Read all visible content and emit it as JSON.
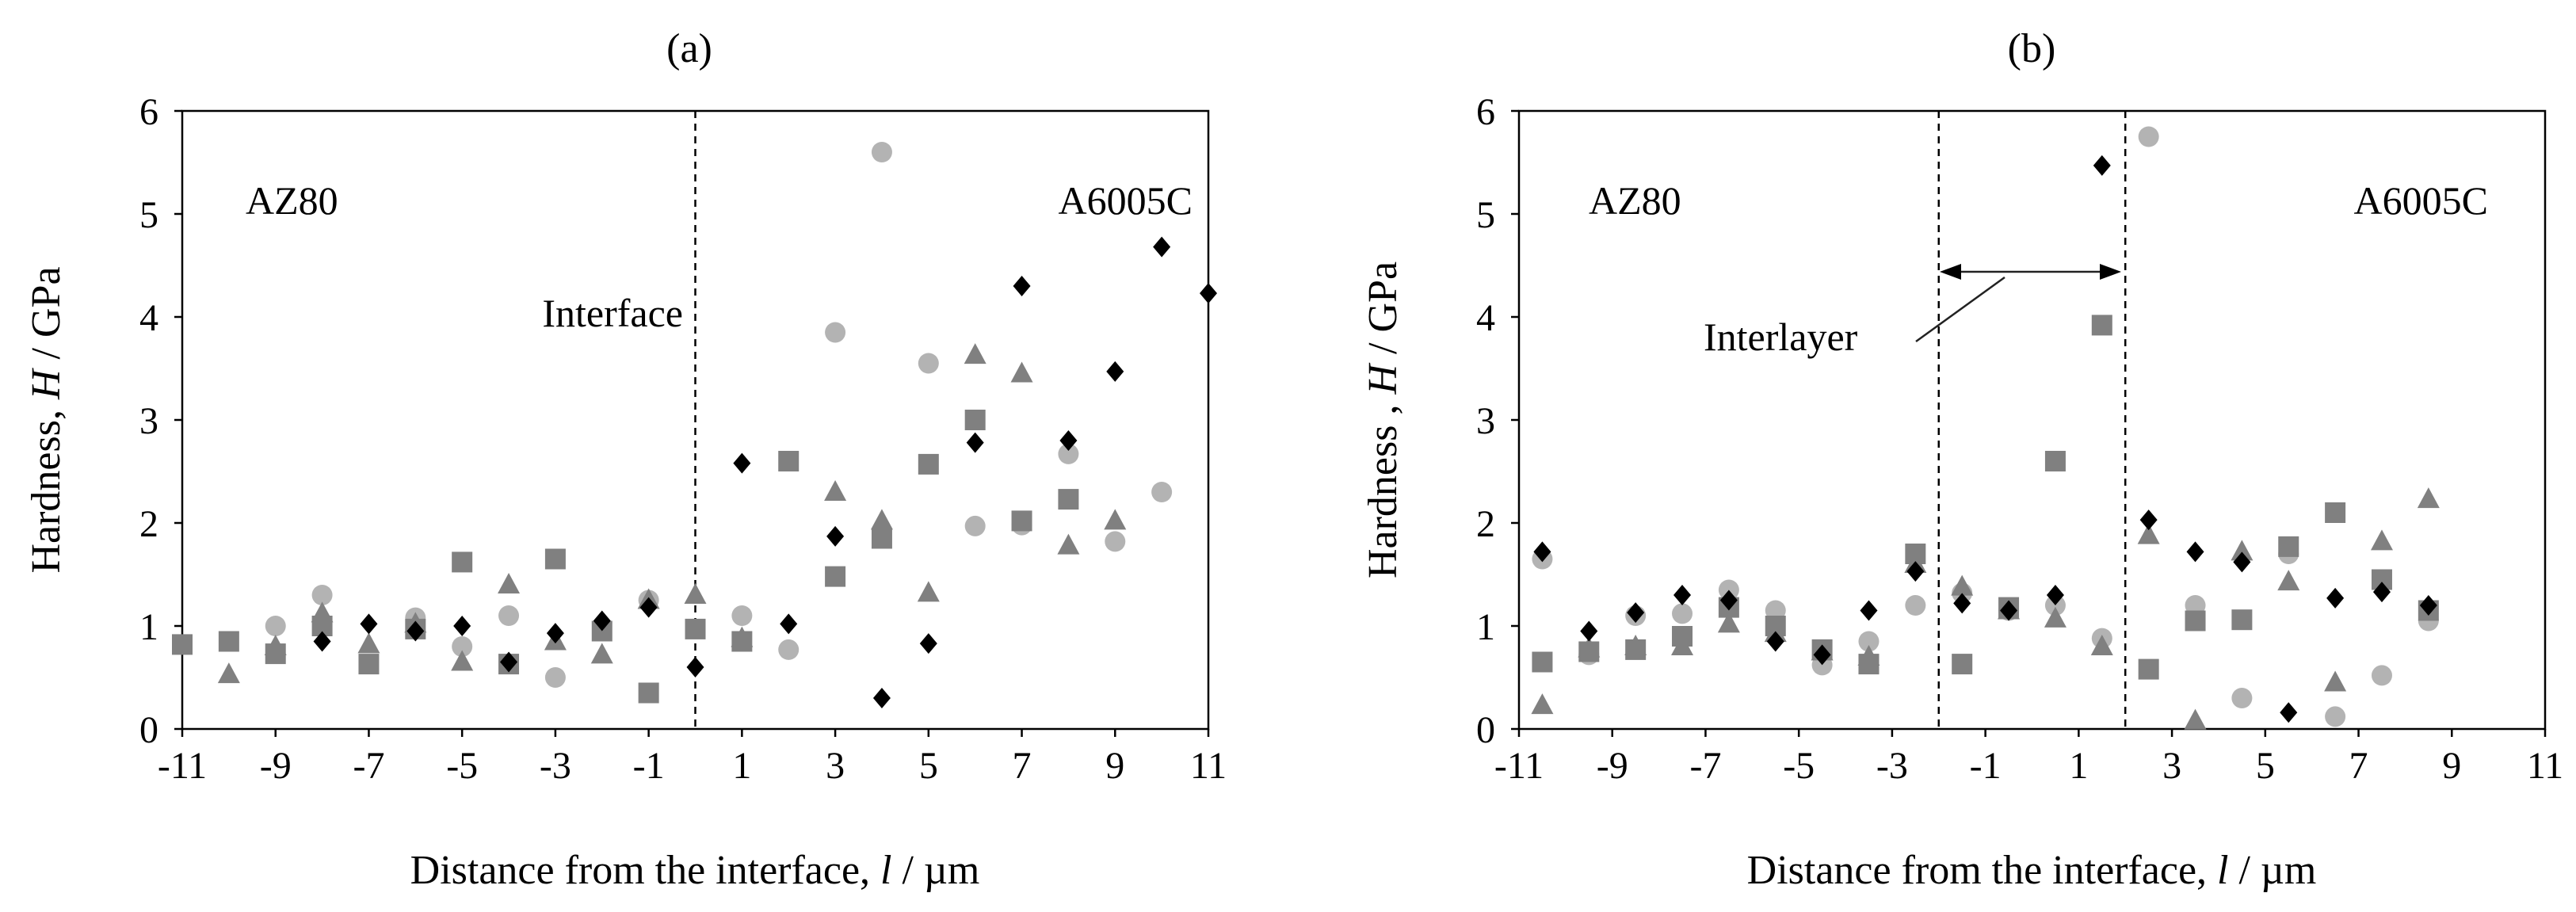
{
  "colors": {
    "diamond": "#000000",
    "square": "#808080",
    "triangle": "#808080",
    "circle": "#b3b3b3"
  },
  "chart_data": [
    {
      "type": "scatter",
      "title": "(a)",
      "xlabel": "Distance from the interface, ",
      "xlabel_var": "l",
      "xlabel_unit": " / µm",
      "ylabel": "Hardness, ",
      "ylabel_var": "H",
      "ylabel_unit": " / GPa",
      "xlim": [
        -11,
        11
      ],
      "ylim": [
        0,
        6
      ],
      "xticks": [
        -11,
        -9,
        -7,
        -5,
        -3,
        -1,
        1,
        3,
        5,
        7,
        9,
        11
      ],
      "yticks": [
        0,
        1,
        2,
        3,
        4,
        5,
        6
      ],
      "region_labels": {
        "left": "AZ80",
        "right": "A6005C"
      },
      "interface_label": "Interface",
      "vlines": [
        0
      ],
      "series": [
        {
          "marker": "diamond",
          "points": [
            [
              -8,
              0.85
            ],
            [
              -7,
              1.02
            ],
            [
              -6,
              0.95
            ],
            [
              -5,
              1.0
            ],
            [
              -4,
              0.65
            ],
            [
              -3,
              0.93
            ],
            [
              -2,
              1.05
            ],
            [
              -1,
              1.18
            ],
            [
              0,
              0.6
            ],
            [
              1,
              2.58
            ],
            [
              2,
              1.02
            ],
            [
              3,
              1.87
            ],
            [
              4,
              0.3
            ],
            [
              5,
              0.83
            ],
            [
              6,
              2.78
            ],
            [
              7,
              4.3
            ],
            [
              8,
              2.8
            ],
            [
              9,
              3.47
            ],
            [
              10,
              4.68
            ],
            [
              11,
              4.23
            ]
          ]
        },
        {
          "marker": "square",
          "points": [
            [
              -11,
              0.82
            ],
            [
              -10,
              0.85
            ],
            [
              -9,
              0.73
            ],
            [
              -8,
              1.0
            ],
            [
              -7,
              0.63
            ],
            [
              -6,
              0.97
            ],
            [
              -5,
              1.62
            ],
            [
              -4,
              0.63
            ],
            [
              -3,
              1.65
            ],
            [
              -2,
              0.95
            ],
            [
              -1,
              0.35
            ],
            [
              0,
              0.97
            ],
            [
              1,
              0.85
            ],
            [
              2,
              2.6
            ],
            [
              3,
              1.48
            ],
            [
              4,
              1.85
            ],
            [
              5,
              2.57
            ],
            [
              6,
              3.0
            ],
            [
              7,
              2.02
            ],
            [
              8,
              2.23
            ]
          ]
        },
        {
          "marker": "triangle",
          "points": [
            [
              -10,
              0.53
            ],
            [
              -9,
              0.8
            ],
            [
              -8,
              1.12
            ],
            [
              -7,
              0.82
            ],
            [
              -6,
              1.02
            ],
            [
              -5,
              0.65
            ],
            [
              -4,
              1.4
            ],
            [
              -3,
              0.85
            ],
            [
              -2,
              0.72
            ],
            [
              -1,
              1.25
            ],
            [
              0,
              1.3
            ],
            [
              1,
              0.88
            ],
            [
              3,
              2.3
            ],
            [
              4,
              2.02
            ],
            [
              5,
              1.32
            ],
            [
              6,
              3.63
            ],
            [
              7,
              3.45
            ],
            [
              8,
              1.78
            ],
            [
              9,
              2.02
            ]
          ]
        },
        {
          "marker": "circle",
          "points": [
            [
              -9,
              1.0
            ],
            [
              -8,
              1.3
            ],
            [
              -6,
              1.08
            ],
            [
              -5,
              0.8
            ],
            [
              -4,
              1.1
            ],
            [
              -3,
              0.5
            ],
            [
              -1,
              1.25
            ],
            [
              1,
              1.1
            ],
            [
              2,
              0.77
            ],
            [
              3,
              3.85
            ],
            [
              4,
              5.6
            ],
            [
              5,
              3.55
            ],
            [
              6,
              1.97
            ],
            [
              7,
              1.98
            ],
            [
              8,
              2.67
            ],
            [
              9,
              1.82
            ],
            [
              10,
              2.3
            ]
          ]
        }
      ]
    },
    {
      "type": "scatter",
      "title": "(b)",
      "xlabel": "Distance from the interface, ",
      "xlabel_var": "l",
      "xlabel_unit": " / µm",
      "ylabel": "Hardness , ",
      "ylabel_var": "H",
      "ylabel_unit": " / GPa",
      "xlim": [
        -11,
        11
      ],
      "ylim": [
        0,
        6
      ],
      "xticks": [
        -11,
        -9,
        -7,
        -5,
        -3,
        -1,
        1,
        3,
        5,
        7,
        9,
        11
      ],
      "yticks": [
        0,
        1,
        2,
        3,
        4,
        5,
        6
      ],
      "region_labels": {
        "left": "AZ80",
        "right": "A6005C"
      },
      "interlayer_label": "Interlayer",
      "vlines": [
        -2,
        2
      ],
      "series": [
        {
          "marker": "diamond",
          "points": [
            [
              -10.5,
              1.72
            ],
            [
              -9.5,
              0.95
            ],
            [
              -8.5,
              1.13
            ],
            [
              -7.5,
              1.3
            ],
            [
              -6.5,
              1.25
            ],
            [
              -5.5,
              0.85
            ],
            [
              -4.5,
              0.72
            ],
            [
              -3.5,
              1.15
            ],
            [
              -2.5,
              1.53
            ],
            [
              -1.5,
              1.22
            ],
            [
              -0.5,
              1.15
            ],
            [
              0.5,
              1.3
            ],
            [
              1.5,
              5.47
            ],
            [
              2.5,
              2.03
            ],
            [
              3.5,
              1.72
            ],
            [
              4.5,
              1.62
            ],
            [
              5.5,
              0.16
            ],
            [
              6.5,
              1.27
            ],
            [
              7.5,
              1.33
            ],
            [
              8.5,
              1.2
            ]
          ]
        },
        {
          "marker": "square",
          "points": [
            [
              -10.5,
              0.65
            ],
            [
              -9.5,
              0.75
            ],
            [
              -8.5,
              0.77
            ],
            [
              -7.5,
              0.9
            ],
            [
              -6.5,
              1.18
            ],
            [
              -5.5,
              1.0
            ],
            [
              -4.5,
              0.77
            ],
            [
              -3.5,
              0.63
            ],
            [
              -2.5,
              1.7
            ],
            [
              -1.5,
              0.63
            ],
            [
              -0.5,
              1.18
            ],
            [
              0.5,
              2.6
            ],
            [
              1.5,
              3.92
            ],
            [
              2.5,
              0.58
            ],
            [
              3.5,
              1.05
            ],
            [
              4.5,
              1.06
            ],
            [
              5.5,
              1.77
            ],
            [
              6.5,
              2.1
            ],
            [
              7.5,
              1.45
            ],
            [
              8.5,
              1.15
            ]
          ]
        },
        {
          "marker": "triangle",
          "points": [
            [
              -10.5,
              0.23
            ],
            [
              -9.5,
              0.78
            ],
            [
              -8.5,
              0.8
            ],
            [
              -7.5,
              0.8
            ],
            [
              -6.5,
              1.02
            ],
            [
              -5.5,
              0.93
            ],
            [
              -4.5,
              0.75
            ],
            [
              -3.5,
              0.7
            ],
            [
              -2.5,
              1.6
            ],
            [
              -1.5,
              1.38
            ],
            [
              -0.5,
              1.15
            ],
            [
              0.5,
              1.07
            ],
            [
              1.5,
              0.8
            ],
            [
              2.5,
              1.88
            ],
            [
              3.5,
              0.08
            ],
            [
              4.5,
              1.72
            ],
            [
              5.5,
              1.43
            ],
            [
              6.5,
              0.45
            ],
            [
              7.5,
              1.82
            ],
            [
              8.5,
              2.23
            ]
          ]
        },
        {
          "marker": "circle",
          "points": [
            [
              -10.5,
              1.65
            ],
            [
              -9.5,
              0.72
            ],
            [
              -8.5,
              1.1
            ],
            [
              -7.5,
              1.12
            ],
            [
              -6.5,
              1.35
            ],
            [
              -5.5,
              1.15
            ],
            [
              -4.5,
              0.62
            ],
            [
              -3.5,
              0.85
            ],
            [
              -2.5,
              1.2
            ],
            [
              -1.5,
              1.32
            ],
            [
              -0.5,
              1.15
            ],
            [
              0.5,
              1.2
            ],
            [
              1.5,
              0.88
            ],
            [
              2.5,
              5.75
            ],
            [
              3.5,
              1.2
            ],
            [
              4.5,
              0.3
            ],
            [
              5.5,
              1.7
            ],
            [
              6.5,
              0.12
            ],
            [
              7.5,
              0.52
            ],
            [
              8.5,
              1.05
            ]
          ]
        }
      ]
    }
  ]
}
